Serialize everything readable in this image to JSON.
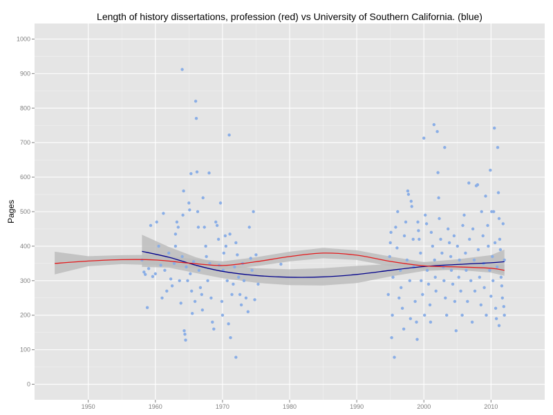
{
  "chart_data": {
    "type": "scatter",
    "title": "Length of history dissertations, profession (red) vs University of Southern California. (blue)",
    "xlabel": "",
    "ylabel": "Pages",
    "xlim": [
      1942,
      2018
    ],
    "ylim": [
      -45,
      1045
    ],
    "x_ticks": [
      1950,
      1960,
      1970,
      1980,
      1990,
      2000,
      2010
    ],
    "y_ticks": [
      0,
      100,
      200,
      300,
      400,
      500,
      600,
      700,
      800,
      900,
      1000
    ],
    "grid": true,
    "legend": "none",
    "colors": {
      "panel": "#e5e5e5",
      "grid": "#ffffff",
      "points": "#8aaee6",
      "profession_line": "#e41a1c",
      "usc_line": "#00008b",
      "band": "#bdbdbd"
    },
    "series": [
      {
        "type": "scatter",
        "points": [
          [
            1958.0,
            360
          ],
          [
            1958.3,
            325
          ],
          [
            1958.5,
            318
          ],
          [
            1958.8,
            222
          ],
          [
            1959.0,
            335
          ],
          [
            1959.3,
            460
          ],
          [
            1959.6,
            312
          ],
          [
            1960.0,
            320
          ],
          [
            1960.2,
            470
          ],
          [
            1960.5,
            400
          ],
          [
            1960.8,
            345
          ],
          [
            1961.0,
            250
          ],
          [
            1961.2,
            495
          ],
          [
            1961.4,
            330
          ],
          [
            1961.7,
            270
          ],
          [
            1962.0,
            380
          ],
          [
            1962.3,
            305
          ],
          [
            1962.5,
            285
          ],
          [
            1962.8,
            350
          ],
          [
            1963.0,
            400
          ],
          [
            1963.0,
            435
          ],
          [
            1963.2,
            470
          ],
          [
            1963.4,
            455
          ],
          [
            1963.6,
            300
          ],
          [
            1963.8,
            235
          ],
          [
            1964.0,
            370
          ],
          [
            1964.0,
            912
          ],
          [
            1964.1,
            490
          ],
          [
            1964.2,
            560
          ],
          [
            1964.3,
            155
          ],
          [
            1964.4,
            145
          ],
          [
            1964.5,
            128
          ],
          [
            1964.6,
            340
          ],
          [
            1964.8,
            300
          ],
          [
            1965.0,
            525
          ],
          [
            1965.1,
            505
          ],
          [
            1965.2,
            320
          ],
          [
            1965.3,
            610
          ],
          [
            1965.4,
            270
          ],
          [
            1965.5,
            205
          ],
          [
            1965.7,
            355
          ],
          [
            1965.9,
            240
          ],
          [
            1966.0,
            820
          ],
          [
            1966.1,
            770
          ],
          [
            1966.2,
            615
          ],
          [
            1966.3,
            500
          ],
          [
            1966.4,
            455
          ],
          [
            1966.5,
            330
          ],
          [
            1966.7,
            280
          ],
          [
            1966.9,
            260
          ],
          [
            1967.0,
            215
          ],
          [
            1967.1,
            540
          ],
          [
            1967.3,
            455
          ],
          [
            1967.5,
            400
          ],
          [
            1967.6,
            370
          ],
          [
            1967.8,
            300
          ],
          [
            1968.0,
            612
          ],
          [
            1968.1,
            350
          ],
          [
            1968.3,
            250
          ],
          [
            1968.5,
            180
          ],
          [
            1968.7,
            160
          ],
          [
            1969.0,
            470
          ],
          [
            1969.2,
            460
          ],
          [
            1969.4,
            420
          ],
          [
            1969.5,
            345
          ],
          [
            1969.7,
            525
          ],
          [
            1969.9,
            240
          ],
          [
            1970.0,
            200
          ],
          [
            1970.1,
            330
          ],
          [
            1970.2,
            380
          ],
          [
            1970.4,
            430
          ],
          [
            1970.5,
            400
          ],
          [
            1970.7,
            300
          ],
          [
            1970.9,
            175
          ],
          [
            1971.0,
            722
          ],
          [
            1971.1,
            435
          ],
          [
            1971.2,
            135
          ],
          [
            1971.4,
            260
          ],
          [
            1971.6,
            290
          ],
          [
            1971.8,
            340
          ],
          [
            1972.0,
            410
          ],
          [
            1972.0,
            78
          ],
          [
            1972.2,
            375
          ],
          [
            1972.4,
            310
          ],
          [
            1972.6,
            260
          ],
          [
            1972.8,
            230
          ],
          [
            1973.0,
            350
          ],
          [
            1973.2,
            300
          ],
          [
            1973.5,
            250
          ],
          [
            1973.8,
            210
          ],
          [
            1974.0,
            455
          ],
          [
            1974.2,
            365
          ],
          [
            1974.4,
            330
          ],
          [
            1974.6,
            500
          ],
          [
            1974.8,
            245
          ],
          [
            1975.0,
            375
          ],
          [
            1975.3,
            290
          ],
          [
            1978.7,
            348
          ],
          [
            1994.7,
            260
          ],
          [
            1994.9,
            370
          ],
          [
            1995.0,
            410
          ],
          [
            1995.1,
            440
          ],
          [
            1995.2,
            135
          ],
          [
            1995.3,
            200
          ],
          [
            1995.4,
            310
          ],
          [
            1995.6,
            78
          ],
          [
            1995.8,
            455
          ],
          [
            1996.0,
            395
          ],
          [
            1996.1,
            500
          ],
          [
            1996.3,
            250
          ],
          [
            1996.5,
            330
          ],
          [
            1996.6,
            280
          ],
          [
            1996.8,
            220
          ],
          [
            1997.0,
            160
          ],
          [
            1997.1,
            430
          ],
          [
            1997.3,
            470
          ],
          [
            1997.5,
            360
          ],
          [
            1997.6,
            560
          ],
          [
            1997.7,
            550
          ],
          [
            1997.9,
            300
          ],
          [
            1998.0,
            190
          ],
          [
            1998.1,
            530
          ],
          [
            1998.2,
            515
          ],
          [
            1998.4,
            420
          ],
          [
            1998.5,
            340
          ],
          [
            1998.7,
            240
          ],
          [
            1998.9,
            180
          ],
          [
            1999.0,
            130
          ],
          [
            1999.1,
            470
          ],
          [
            1999.2,
            445
          ],
          [
            1999.3,
            420
          ],
          [
            1999.5,
            380
          ],
          [
            1999.6,
            300
          ],
          [
            1999.8,
            260
          ],
          [
            2000.0,
            713
          ],
          [
            2000.1,
            200
          ],
          [
            2000.2,
            490
          ],
          [
            2000.4,
            465
          ],
          [
            2000.5,
            330
          ],
          [
            2000.7,
            290
          ],
          [
            2000.9,
            230
          ],
          [
            2001.0,
            180
          ],
          [
            2001.1,
            440
          ],
          [
            2001.3,
            400
          ],
          [
            2001.5,
            752
          ],
          [
            2001.6,
            360
          ],
          [
            2001.7,
            310
          ],
          [
            2001.8,
            270
          ],
          [
            2002.0,
            732
          ],
          [
            2002.1,
            613
          ],
          [
            2002.2,
            540
          ],
          [
            2002.3,
            480
          ],
          [
            2002.5,
            420
          ],
          [
            2002.7,
            380
          ],
          [
            2002.9,
            340
          ],
          [
            2003.0,
            300
          ],
          [
            2003.1,
            686
          ],
          [
            2003.2,
            250
          ],
          [
            2003.4,
            200
          ],
          [
            2003.6,
            450
          ],
          [
            2003.8,
            410
          ],
          [
            2004.0,
            370
          ],
          [
            2004.1,
            330
          ],
          [
            2004.3,
            290
          ],
          [
            2004.5,
            430
          ],
          [
            2004.6,
            240
          ],
          [
            2004.8,
            155
          ],
          [
            2005.0,
            400
          ],
          [
            2005.2,
            310
          ],
          [
            2005.3,
            360
          ],
          [
            2005.5,
            270
          ],
          [
            2005.7,
            200
          ],
          [
            2005.8,
            460
          ],
          [
            2006.0,
            490
          ],
          [
            2006.2,
            380
          ],
          [
            2006.3,
            330
          ],
          [
            2006.5,
            240
          ],
          [
            2006.7,
            583
          ],
          [
            2006.8,
            420
          ],
          [
            2007.0,
            300
          ],
          [
            2007.2,
            180
          ],
          [
            2007.3,
            450
          ],
          [
            2007.5,
            360
          ],
          [
            2007.6,
            270
          ],
          [
            2007.8,
            575
          ],
          [
            2008.0,
            578
          ],
          [
            2008.1,
            390
          ],
          [
            2008.3,
            310
          ],
          [
            2008.5,
            230
          ],
          [
            2008.6,
            500
          ],
          [
            2008.8,
            430
          ],
          [
            2008.9,
            350
          ],
          [
            2009.0,
            280
          ],
          [
            2009.2,
            545
          ],
          [
            2009.3,
            200
          ],
          [
            2009.5,
            460
          ],
          [
            2009.6,
            400
          ],
          [
            2009.8,
            330
          ],
          [
            2009.9,
            620
          ],
          [
            2010.0,
            255
          ],
          [
            2010.1,
            500
          ],
          [
            2010.2,
            370
          ],
          [
            2010.3,
            300
          ],
          [
            2010.5,
            742
          ],
          [
            2010.6,
            410
          ],
          [
            2010.7,
            220
          ],
          [
            2010.8,
            190
          ],
          [
            2010.9,
            340
          ],
          [
            2011.0,
            686
          ],
          [
            2011.1,
            555
          ],
          [
            2011.2,
            480
          ],
          [
            2011.3,
            420
          ],
          [
            2011.4,
            390
          ],
          [
            2011.5,
            310
          ],
          [
            2011.6,
            285
          ],
          [
            2011.7,
            250
          ],
          [
            2011.8,
            465
          ],
          [
            2011.9,
            225
          ],
          [
            2012.0,
            360
          ],
          [
            2012.0,
            200
          ],
          [
            2011.2,
            170
          ],
          [
            2010.4,
            500
          ]
        ]
      },
      {
        "type": "line",
        "x": [
          1945,
          1950,
          1955,
          1960,
          1965,
          1970,
          1975,
          1980,
          1985,
          1990,
          1995,
          2000,
          2005,
          2010,
          2012
        ],
        "values": [
          350,
          357,
          361,
          360,
          351,
          344,
          355,
          370,
          380,
          374,
          356,
          343,
          340,
          336,
          330
        ]
      },
      {
        "type": "line",
        "x": [
          1958,
          1962,
          1966,
          1970,
          1975,
          1980,
          1985,
          1990,
          1995,
          2000,
          2005,
          2010,
          2012
        ],
        "values": [
          385,
          368,
          345,
          327,
          315,
          310,
          311,
          318,
          330,
          341,
          347,
          352,
          355
        ]
      },
      {
        "type": "band",
        "x": [
          1945,
          1950,
          1955,
          1960,
          1965,
          1970,
          1975,
          1980,
          1985,
          1990,
          1995,
          2000,
          2005,
          2010,
          2012
        ],
        "lower": [
          318,
          342,
          348,
          345,
          337,
          332,
          342,
          356,
          365,
          360,
          342,
          332,
          331,
          323,
          314
        ],
        "upper": [
          384,
          371,
          374,
          375,
          365,
          356,
          368,
          384,
          395,
          388,
          370,
          354,
          349,
          349,
          346
        ]
      },
      {
        "type": "band",
        "x": [
          1958,
          1962,
          1966,
          1970,
          1975,
          1980,
          1985,
          1990,
          1995,
          2000,
          2005,
          2010,
          2012
        ],
        "lower": [
          340,
          338,
          322,
          307,
          294,
          287,
          286,
          293,
          312,
          328,
          332,
          330,
          320
        ],
        "upper": [
          433,
          398,
          368,
          347,
          336,
          333,
          336,
          343,
          348,
          354,
          362,
          374,
          390
        ]
      }
    ]
  }
}
